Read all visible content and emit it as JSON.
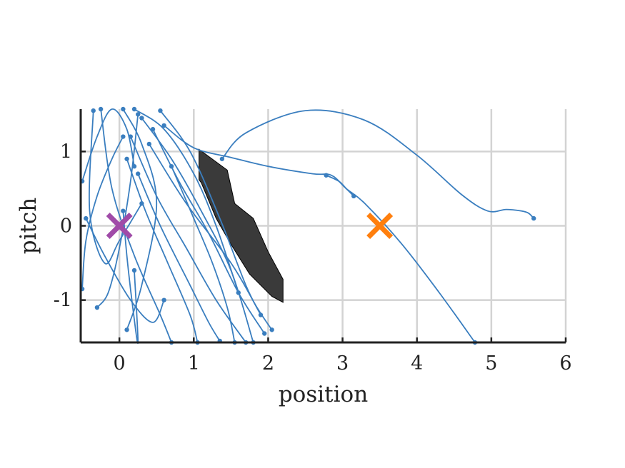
{
  "chart_data": {
    "type": "line",
    "title": "",
    "xlabel": "position",
    "ylabel": "pitch",
    "xlim": [
      -0.52,
      6.0
    ],
    "ylim": [
      -1.57,
      1.57
    ],
    "xticks": [
      0,
      1,
      2,
      3,
      4,
      5,
      6
    ],
    "xtick_labels": [
      "0",
      "1",
      "2",
      "3",
      "4",
      "5",
      "6"
    ],
    "yticks": [
      -1,
      0,
      1
    ],
    "ytick_labels": [
      "-1",
      "0",
      "1"
    ],
    "grid": true,
    "legend": "none",
    "colors": {
      "trajectory": "#3a7ebf",
      "obstacle": "#3a3a3a",
      "start": "#a04ba8",
      "goal": "#ff7f0e",
      "axis": "#222222",
      "grid": "#d3d3d3"
    },
    "obstacle": {
      "vertices": [
        [
          1.07,
          1.03
        ],
        [
          1.45,
          0.75
        ],
        [
          1.55,
          0.3
        ],
        [
          1.8,
          0.1
        ],
        [
          2.0,
          -0.35
        ],
        [
          2.2,
          -0.72
        ],
        [
          2.2,
          -1.03
        ],
        [
          2.05,
          -0.95
        ],
        [
          1.75,
          -0.65
        ],
        [
          1.5,
          -0.25
        ],
        [
          1.3,
          0.1
        ],
        [
          1.1,
          0.58
        ],
        [
          1.07,
          0.62
        ]
      ]
    },
    "start_marker": {
      "x": 0.0,
      "y": 0.0,
      "symbol": "x"
    },
    "goal_marker": {
      "x": 3.5,
      "y": 0.0,
      "symbol": "x"
    },
    "series": [
      {
        "x": [
          1.38,
          1.7,
          2.5,
          3.3,
          4.0,
          4.6,
          4.95,
          5.2,
          5.4,
          5.5,
          5.57
        ],
        "y": [
          0.9,
          1.25,
          1.55,
          1.42,
          0.95,
          0.42,
          0.2,
          0.22,
          0.2,
          0.17,
          0.1
        ]
      },
      {
        "x": [
          0.6,
          1.0,
          1.5,
          2.0,
          2.6,
          2.85,
          3.05,
          3.3,
          3.8,
          4.3,
          4.78
        ],
        "y": [
          1.35,
          1.05,
          0.92,
          0.8,
          0.7,
          0.68,
          0.5,
          0.3,
          -0.25,
          -0.9,
          -1.57
        ]
      },
      {
        "x": [
          2.78,
          2.95,
          3.05,
          3.15
        ],
        "y": [
          0.68,
          0.6,
          0.5,
          0.4
        ]
      },
      {
        "x": [
          -0.5,
          -0.3,
          -0.1,
          0.1,
          0.2
        ],
        "y": [
          0.6,
          1.2,
          1.57,
          1.3,
          0.8
        ]
      },
      {
        "x": [
          -0.35,
          -0.4,
          -0.2,
          0.0,
          0.3
        ],
        "y": [
          1.55,
          0.2,
          -0.5,
          -0.2,
          0.3
        ]
      },
      {
        "x": [
          -0.5,
          -0.45,
          -0.3,
          -0.1,
          0.05
        ],
        "y": [
          -0.85,
          -0.2,
          0.4,
          0.9,
          1.2
        ]
      },
      {
        "x": [
          0.05,
          0.3,
          0.5,
          0.3,
          0.1
        ],
        "y": [
          1.57,
          1.1,
          0.3,
          -0.8,
          -1.4
        ]
      },
      {
        "x": [
          0.2,
          0.6,
          1.0,
          1.3,
          1.6
        ],
        "y": [
          1.57,
          1.3,
          0.7,
          0.0,
          -0.9
        ]
      },
      {
        "x": [
          0.3,
          0.7,
          1.1,
          1.5,
          1.8
        ],
        "y": [
          1.45,
          0.9,
          0.2,
          -0.6,
          -1.57
        ]
      },
      {
        "x": [
          0.45,
          0.8,
          1.2,
          1.6,
          1.95
        ],
        "y": [
          1.3,
          0.6,
          -0.1,
          -0.9,
          -1.45
        ]
      },
      {
        "x": [
          0.15,
          0.5,
          0.9,
          1.3,
          1.7
        ],
        "y": [
          1.2,
          0.4,
          -0.3,
          -1.0,
          -1.57
        ]
      },
      {
        "x": [
          -0.25,
          -0.1,
          0.2,
          0.55,
          0.7
        ],
        "y": [
          1.57,
          0.5,
          -0.4,
          -1.2,
          -1.57
        ]
      },
      {
        "x": [
          0.25,
          0.15,
          0.0,
          -0.15,
          -0.3
        ],
        "y": [
          1.5,
          0.6,
          -0.3,
          -0.9,
          -1.1
        ]
      },
      {
        "x": [
          0.4,
          0.9,
          1.5,
          1.85,
          2.05
        ],
        "y": [
          1.1,
          0.3,
          -0.5,
          -1.1,
          -1.4
        ]
      },
      {
        "x": [
          0.1,
          0.35,
          0.65,
          0.95,
          1.05
        ],
        "y": [
          0.9,
          0.2,
          -0.5,
          -1.2,
          -1.57
        ]
      },
      {
        "x": [
          0.55,
          0.95,
          1.35,
          1.7,
          1.9
        ],
        "y": [
          1.55,
          1.0,
          0.1,
          -0.8,
          -1.2
        ]
      },
      {
        "x": [
          -0.45,
          -0.2,
          0.15,
          0.45,
          0.6
        ],
        "y": [
          0.1,
          -0.4,
          -1.0,
          -1.3,
          -1.0
        ]
      },
      {
        "x": [
          0.05,
          0.1,
          0.18,
          0.25,
          0.2
        ],
        "y": [
          0.2,
          -0.4,
          -1.1,
          -1.57,
          -0.6
        ]
      },
      {
        "x": [
          0.7,
          1.0,
          1.25,
          1.45,
          1.55
        ],
        "y": [
          0.8,
          0.1,
          -0.5,
          -1.1,
          -1.57
        ]
      },
      {
        "x": [
          0.25,
          0.55,
          0.95,
          1.2,
          1.35
        ],
        "y": [
          0.7,
          0.0,
          -0.8,
          -1.3,
          -1.55
        ]
      }
    ]
  }
}
